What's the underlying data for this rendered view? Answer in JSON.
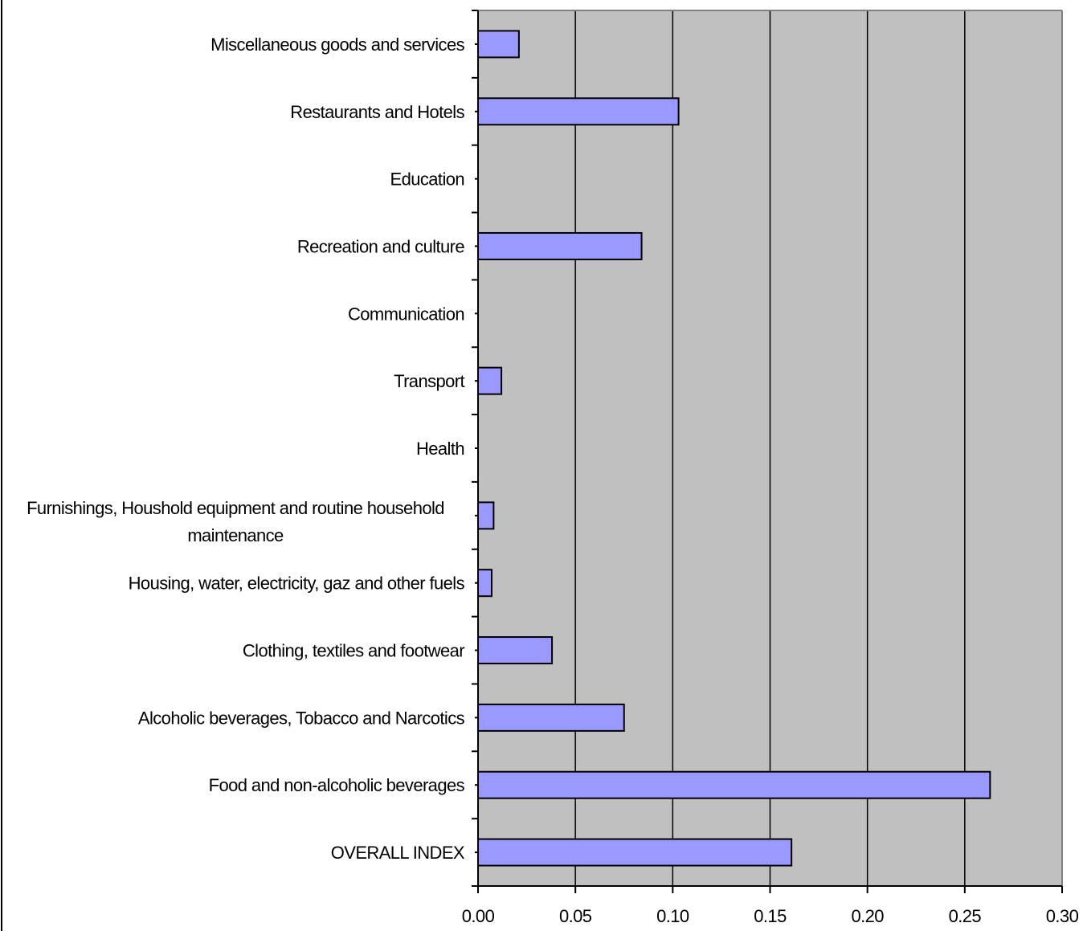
{
  "chart_data": {
    "type": "bar",
    "orientation": "horizontal",
    "categories": [
      "Miscellaneous goods and services",
      "Restaurants and Hotels",
      "Education",
      "Recreation and culture",
      "Communication",
      "Transport",
      "Health",
      [
        "Furnishings, Houshold equipment and routine household",
        "maintenance"
      ],
      "Housing, water, electricity, gaz and other fuels",
      "Clothing, textiles and footwear",
      "Alcoholic beverages, Tobacco and Narcotics",
      "Food and non-alcoholic beverages",
      "OVERALL INDEX"
    ],
    "values": [
      0.021,
      0.103,
      0.0,
      0.084,
      0.0,
      0.012,
      0.0,
      0.008,
      0.007,
      0.038,
      0.075,
      0.263,
      0.161
    ],
    "xlim": [
      0,
      0.3
    ],
    "xticks": [
      0.0,
      0.05,
      0.1,
      0.15,
      0.2,
      0.25,
      0.3
    ],
    "xtick_labels": [
      "0.00",
      "0.05",
      "0.10",
      "0.15",
      "0.20",
      "0.25",
      "0.30"
    ],
    "grid": "vertical",
    "colors": {
      "bar_fill": "#9999ff",
      "plot_background": "#c0c0c0",
      "plot_border": "#808080"
    }
  }
}
